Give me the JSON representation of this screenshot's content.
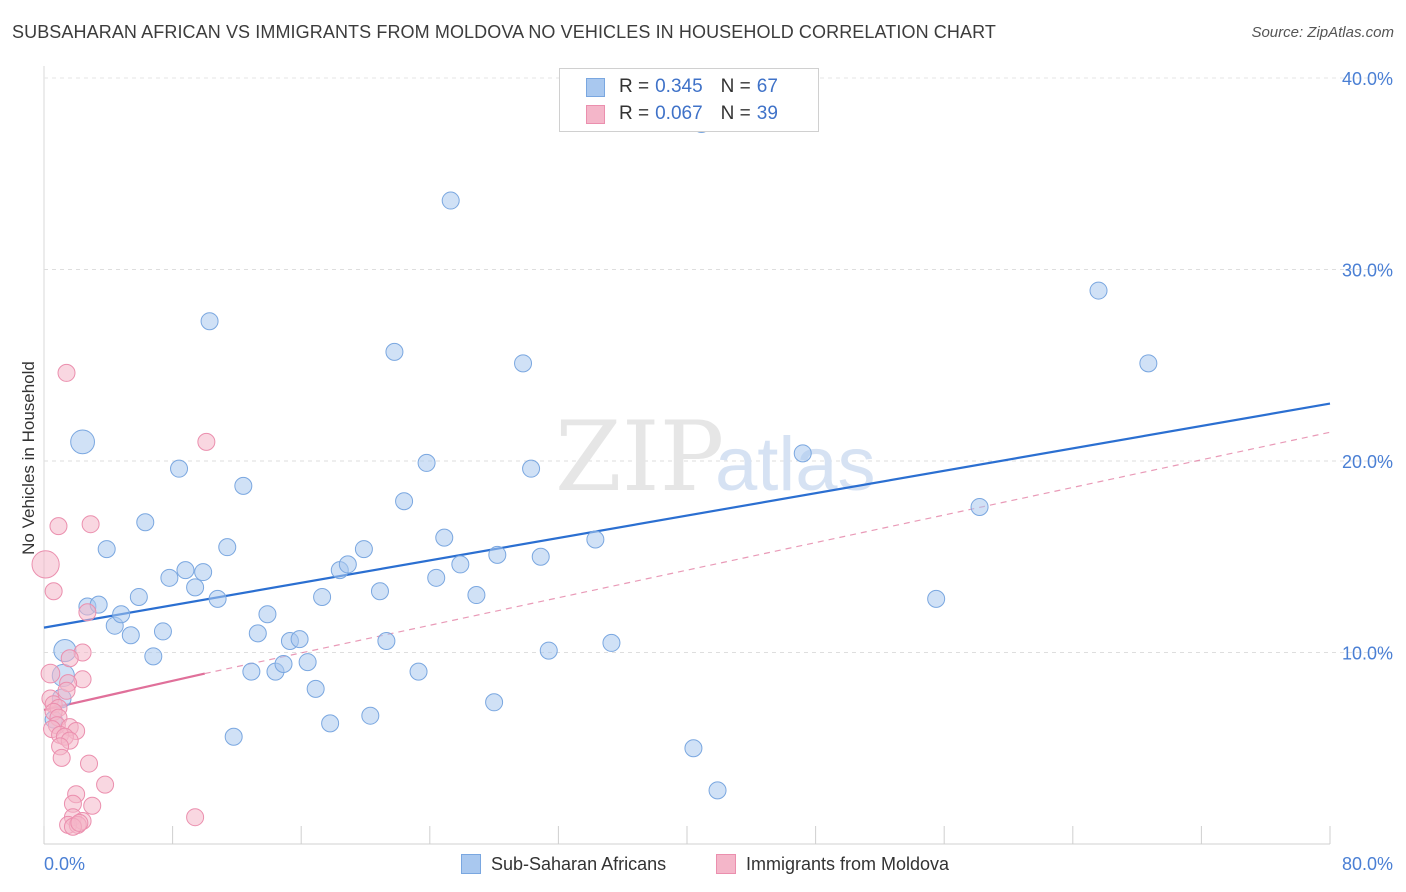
{
  "title": "SUBSAHARAN AFRICAN VS IMMIGRANTS FROM MOLDOVA NO VEHICLES IN HOUSEHOLD CORRELATION CHART",
  "source": "Source: ZipAtlas.com",
  "legend": {
    "rows": [
      {
        "r_label": "R =",
        "r_value": "0.345",
        "n_label": "N =",
        "n_value": "67"
      },
      {
        "r_label": "R =",
        "r_value": "0.067",
        "n_label": "N =",
        "n_value": "39"
      }
    ]
  },
  "bottom_legend": {
    "series1": "Sub-Saharan Africans",
    "series2": "Immigrants from Moldova"
  },
  "colors": {
    "blue_fill": "#a9c8ef",
    "blue_stroke": "#7aa7e0",
    "blue_line": "#2b6fd1",
    "pink_fill": "#f4b6c9",
    "pink_stroke": "#eb8fae",
    "pink_line": "#e0709a",
    "axis_text": "#4a7fd4"
  },
  "chart_data": {
    "type": "scatter",
    "title": "SUBSAHARAN AFRICAN VS IMMIGRANTS FROM MOLDOVA NO VEHICLES IN HOUSEHOLD CORRELATION CHART",
    "xlabel": "",
    "ylabel": "No Vehicles in Household",
    "xlim": [
      0,
      80
    ],
    "ylim": [
      0,
      42
    ],
    "x_tick_labels": [
      "0.0%",
      "80.0%"
    ],
    "y_ticks": [
      10,
      20,
      30,
      40
    ],
    "y_tick_labels": [
      "10.0%",
      "20.0%",
      "30.0%",
      "40.0%"
    ],
    "watermark": "ZIPatlas",
    "series": [
      {
        "name": "Sub-Saharan Africans",
        "R": 0.345,
        "N": 67,
        "trend": {
          "x": [
            0,
            80
          ],
          "y": [
            11.3,
            23.0
          ],
          "style": "solid"
        },
        "points": [
          {
            "x": 2.4,
            "y": 21.0,
            "s": 1.4
          },
          {
            "x": 1.3,
            "y": 10.1,
            "s": 1.3
          },
          {
            "x": 1.2,
            "y": 8.8,
            "s": 1.3
          },
          {
            "x": 1.1,
            "y": 7.6,
            "s": 1.1
          },
          {
            "x": 0.6,
            "y": 6.5,
            "s": 1.0
          },
          {
            "x": 2.7,
            "y": 12.4,
            "s": 1
          },
          {
            "x": 3.4,
            "y": 12.5,
            "s": 1
          },
          {
            "x": 3.9,
            "y": 15.4,
            "s": 1
          },
          {
            "x": 4.4,
            "y": 11.4,
            "s": 1
          },
          {
            "x": 4.8,
            "y": 12.0,
            "s": 1
          },
          {
            "x": 5.4,
            "y": 10.9,
            "s": 1
          },
          {
            "x": 5.9,
            "y": 12.9,
            "s": 1
          },
          {
            "x": 6.3,
            "y": 16.8,
            "s": 1
          },
          {
            "x": 6.8,
            "y": 9.8,
            "s": 1
          },
          {
            "x": 7.4,
            "y": 11.1,
            "s": 1
          },
          {
            "x": 7.8,
            "y": 13.9,
            "s": 1
          },
          {
            "x": 8.4,
            "y": 19.6,
            "s": 1
          },
          {
            "x": 8.8,
            "y": 14.3,
            "s": 1
          },
          {
            "x": 9.4,
            "y": 13.4,
            "s": 1
          },
          {
            "x": 9.9,
            "y": 14.2,
            "s": 1
          },
          {
            "x": 10.3,
            "y": 27.3,
            "s": 1
          },
          {
            "x": 10.8,
            "y": 12.8,
            "s": 1
          },
          {
            "x": 11.4,
            "y": 15.5,
            "s": 1
          },
          {
            "x": 11.8,
            "y": 5.6,
            "s": 1
          },
          {
            "x": 12.4,
            "y": 18.7,
            "s": 1
          },
          {
            "x": 12.9,
            "y": 9.0,
            "s": 1
          },
          {
            "x": 13.3,
            "y": 11.0,
            "s": 1
          },
          {
            "x": 13.9,
            "y": 12.0,
            "s": 1
          },
          {
            "x": 14.4,
            "y": 9.0,
            "s": 1
          },
          {
            "x": 14.9,
            "y": 9.4,
            "s": 1
          },
          {
            "x": 15.3,
            "y": 10.6,
            "s": 1
          },
          {
            "x": 15.9,
            "y": 10.7,
            "s": 1
          },
          {
            "x": 16.4,
            "y": 9.5,
            "s": 1
          },
          {
            "x": 16.9,
            "y": 8.1,
            "s": 1
          },
          {
            "x": 17.3,
            "y": 12.9,
            "s": 1
          },
          {
            "x": 17.8,
            "y": 6.3,
            "s": 1
          },
          {
            "x": 18.4,
            "y": 14.3,
            "s": 1
          },
          {
            "x": 18.9,
            "y": 14.6,
            "s": 1
          },
          {
            "x": 19.9,
            "y": 15.4,
            "s": 1
          },
          {
            "x": 20.3,
            "y": 6.7,
            "s": 1
          },
          {
            "x": 20.9,
            "y": 13.2,
            "s": 1
          },
          {
            "x": 21.3,
            "y": 10.6,
            "s": 1
          },
          {
            "x": 22.4,
            "y": 17.9,
            "s": 1
          },
          {
            "x": 21.8,
            "y": 25.7,
            "s": 1
          },
          {
            "x": 23.3,
            "y": 9.0,
            "s": 1
          },
          {
            "x": 23.8,
            "y": 19.9,
            "s": 1
          },
          {
            "x": 24.4,
            "y": 13.9,
            "s": 1
          },
          {
            "x": 24.9,
            "y": 16.0,
            "s": 1
          },
          {
            "x": 25.3,
            "y": 33.6,
            "s": 1
          },
          {
            "x": 25.9,
            "y": 14.6,
            "s": 1
          },
          {
            "x": 26.9,
            "y": 13.0,
            "s": 1
          },
          {
            "x": 28.2,
            "y": 15.1,
            "s": 1
          },
          {
            "x": 28.0,
            "y": 7.4,
            "s": 1
          },
          {
            "x": 29.8,
            "y": 25.1,
            "s": 1
          },
          {
            "x": 30.3,
            "y": 19.6,
            "s": 1
          },
          {
            "x": 30.9,
            "y": 15.0,
            "s": 1
          },
          {
            "x": 31.4,
            "y": 10.1,
            "s": 1
          },
          {
            "x": 34.3,
            "y": 15.9,
            "s": 1
          },
          {
            "x": 35.3,
            "y": 10.5,
            "s": 1
          },
          {
            "x": 40.4,
            "y": 5.0,
            "s": 1
          },
          {
            "x": 40.9,
            "y": 37.6,
            "s": 1
          },
          {
            "x": 41.9,
            "y": 2.8,
            "s": 1
          },
          {
            "x": 47.2,
            "y": 20.4,
            "s": 1
          },
          {
            "x": 55.5,
            "y": 12.8,
            "s": 1
          },
          {
            "x": 58.2,
            "y": 17.6,
            "s": 1
          },
          {
            "x": 65.6,
            "y": 28.9,
            "s": 1
          },
          {
            "x": 68.7,
            "y": 25.1,
            "s": 1
          }
        ]
      },
      {
        "name": "Immigrants from Moldova",
        "R": 0.067,
        "N": 39,
        "trend": {
          "x": [
            0,
            10
          ],
          "y": [
            7.0,
            8.9
          ],
          "style": "solid"
        },
        "trend_extended": {
          "x": [
            10,
            80
          ],
          "y": [
            8.9,
            21.5
          ],
          "style": "dashed"
        },
        "points": [
          {
            "x": 0.1,
            "y": 14.6,
            "s": 1.6
          },
          {
            "x": 1.4,
            "y": 24.6,
            "s": 1
          },
          {
            "x": 0.9,
            "y": 16.6,
            "s": 1
          },
          {
            "x": 2.9,
            "y": 16.7,
            "s": 1
          },
          {
            "x": 10.1,
            "y": 21.0,
            "s": 1
          },
          {
            "x": 0.6,
            "y": 13.2,
            "s": 1
          },
          {
            "x": 2.7,
            "y": 12.1,
            "s": 1
          },
          {
            "x": 2.4,
            "y": 10.0,
            "s": 1
          },
          {
            "x": 1.6,
            "y": 9.7,
            "s": 1
          },
          {
            "x": 0.4,
            "y": 8.9,
            "s": 1.1
          },
          {
            "x": 2.4,
            "y": 8.6,
            "s": 1
          },
          {
            "x": 1.5,
            "y": 8.4,
            "s": 1
          },
          {
            "x": 1.4,
            "y": 8.0,
            "s": 1
          },
          {
            "x": 0.4,
            "y": 7.6,
            "s": 1
          },
          {
            "x": 0.6,
            "y": 7.3,
            "s": 1
          },
          {
            "x": 0.9,
            "y": 7.1,
            "s": 1
          },
          {
            "x": 0.6,
            "y": 6.9,
            "s": 1
          },
          {
            "x": 0.9,
            "y": 6.6,
            "s": 1
          },
          {
            "x": 0.8,
            "y": 6.2,
            "s": 1
          },
          {
            "x": 1.6,
            "y": 6.1,
            "s": 1
          },
          {
            "x": 0.5,
            "y": 6.0,
            "s": 1
          },
          {
            "x": 2.0,
            "y": 5.9,
            "s": 1
          },
          {
            "x": 1.0,
            "y": 5.7,
            "s": 1
          },
          {
            "x": 1.3,
            "y": 5.6,
            "s": 1
          },
          {
            "x": 1.6,
            "y": 5.4,
            "s": 1
          },
          {
            "x": 1.0,
            "y": 5.1,
            "s": 1
          },
          {
            "x": 1.1,
            "y": 4.5,
            "s": 1
          },
          {
            "x": 2.8,
            "y": 4.2,
            "s": 1
          },
          {
            "x": 3.8,
            "y": 3.1,
            "s": 1
          },
          {
            "x": 2.0,
            "y": 2.6,
            "s": 1
          },
          {
            "x": 1.8,
            "y": 2.1,
            "s": 1
          },
          {
            "x": 3.0,
            "y": 2.0,
            "s": 1
          },
          {
            "x": 1.8,
            "y": 1.4,
            "s": 1
          },
          {
            "x": 2.4,
            "y": 1.2,
            "s": 1
          },
          {
            "x": 1.5,
            "y": 1.0,
            "s": 1
          },
          {
            "x": 2.1,
            "y": 1.0,
            "s": 1
          },
          {
            "x": 1.8,
            "y": 0.9,
            "s": 1
          },
          {
            "x": 9.4,
            "y": 1.4,
            "s": 1
          },
          {
            "x": 2.2,
            "y": 1.1,
            "s": 1
          }
        ]
      }
    ]
  }
}
